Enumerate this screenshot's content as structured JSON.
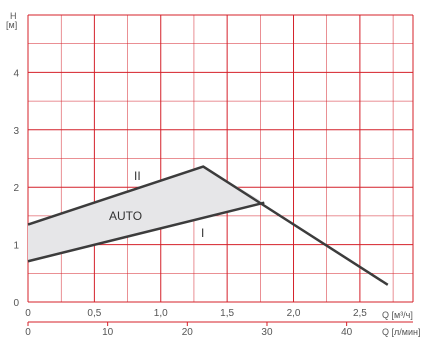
{
  "chart_data": {
    "type": "area",
    "x_axis_top": {
      "label": "Q [м³/ч]",
      "ticks": [
        "0",
        "0,5",
        "1,0",
        "1,5",
        "2,0",
        "2,5"
      ],
      "range": [
        0,
        2.9
      ]
    },
    "x_axis_bottom": {
      "label": "Q [л/мин]",
      "ticks": [
        "0",
        "10",
        "20",
        "30",
        "40"
      ],
      "range": [
        0,
        48.33
      ]
    },
    "y_axis": {
      "label_line1": "H",
      "label_line2": "[м]",
      "ticks": [
        "0",
        "1",
        "2",
        "3",
        "4"
      ],
      "range": [
        0,
        5
      ]
    },
    "grid": true,
    "series": [
      {
        "name": "II",
        "x": [
          0,
          1.32,
          2.71
        ],
        "y": [
          1.35,
          2.36,
          0.3
        ]
      },
      {
        "name": "I",
        "x": [
          0,
          1.78
        ],
        "y": [
          0.71,
          1.73
        ]
      }
    ],
    "annotations": {
      "auto": "AUTO"
    },
    "colors": {
      "grid": "#d4202a",
      "curve": "#3c3c3c",
      "fill": "#e6e6e8",
      "text": "#555555"
    }
  }
}
